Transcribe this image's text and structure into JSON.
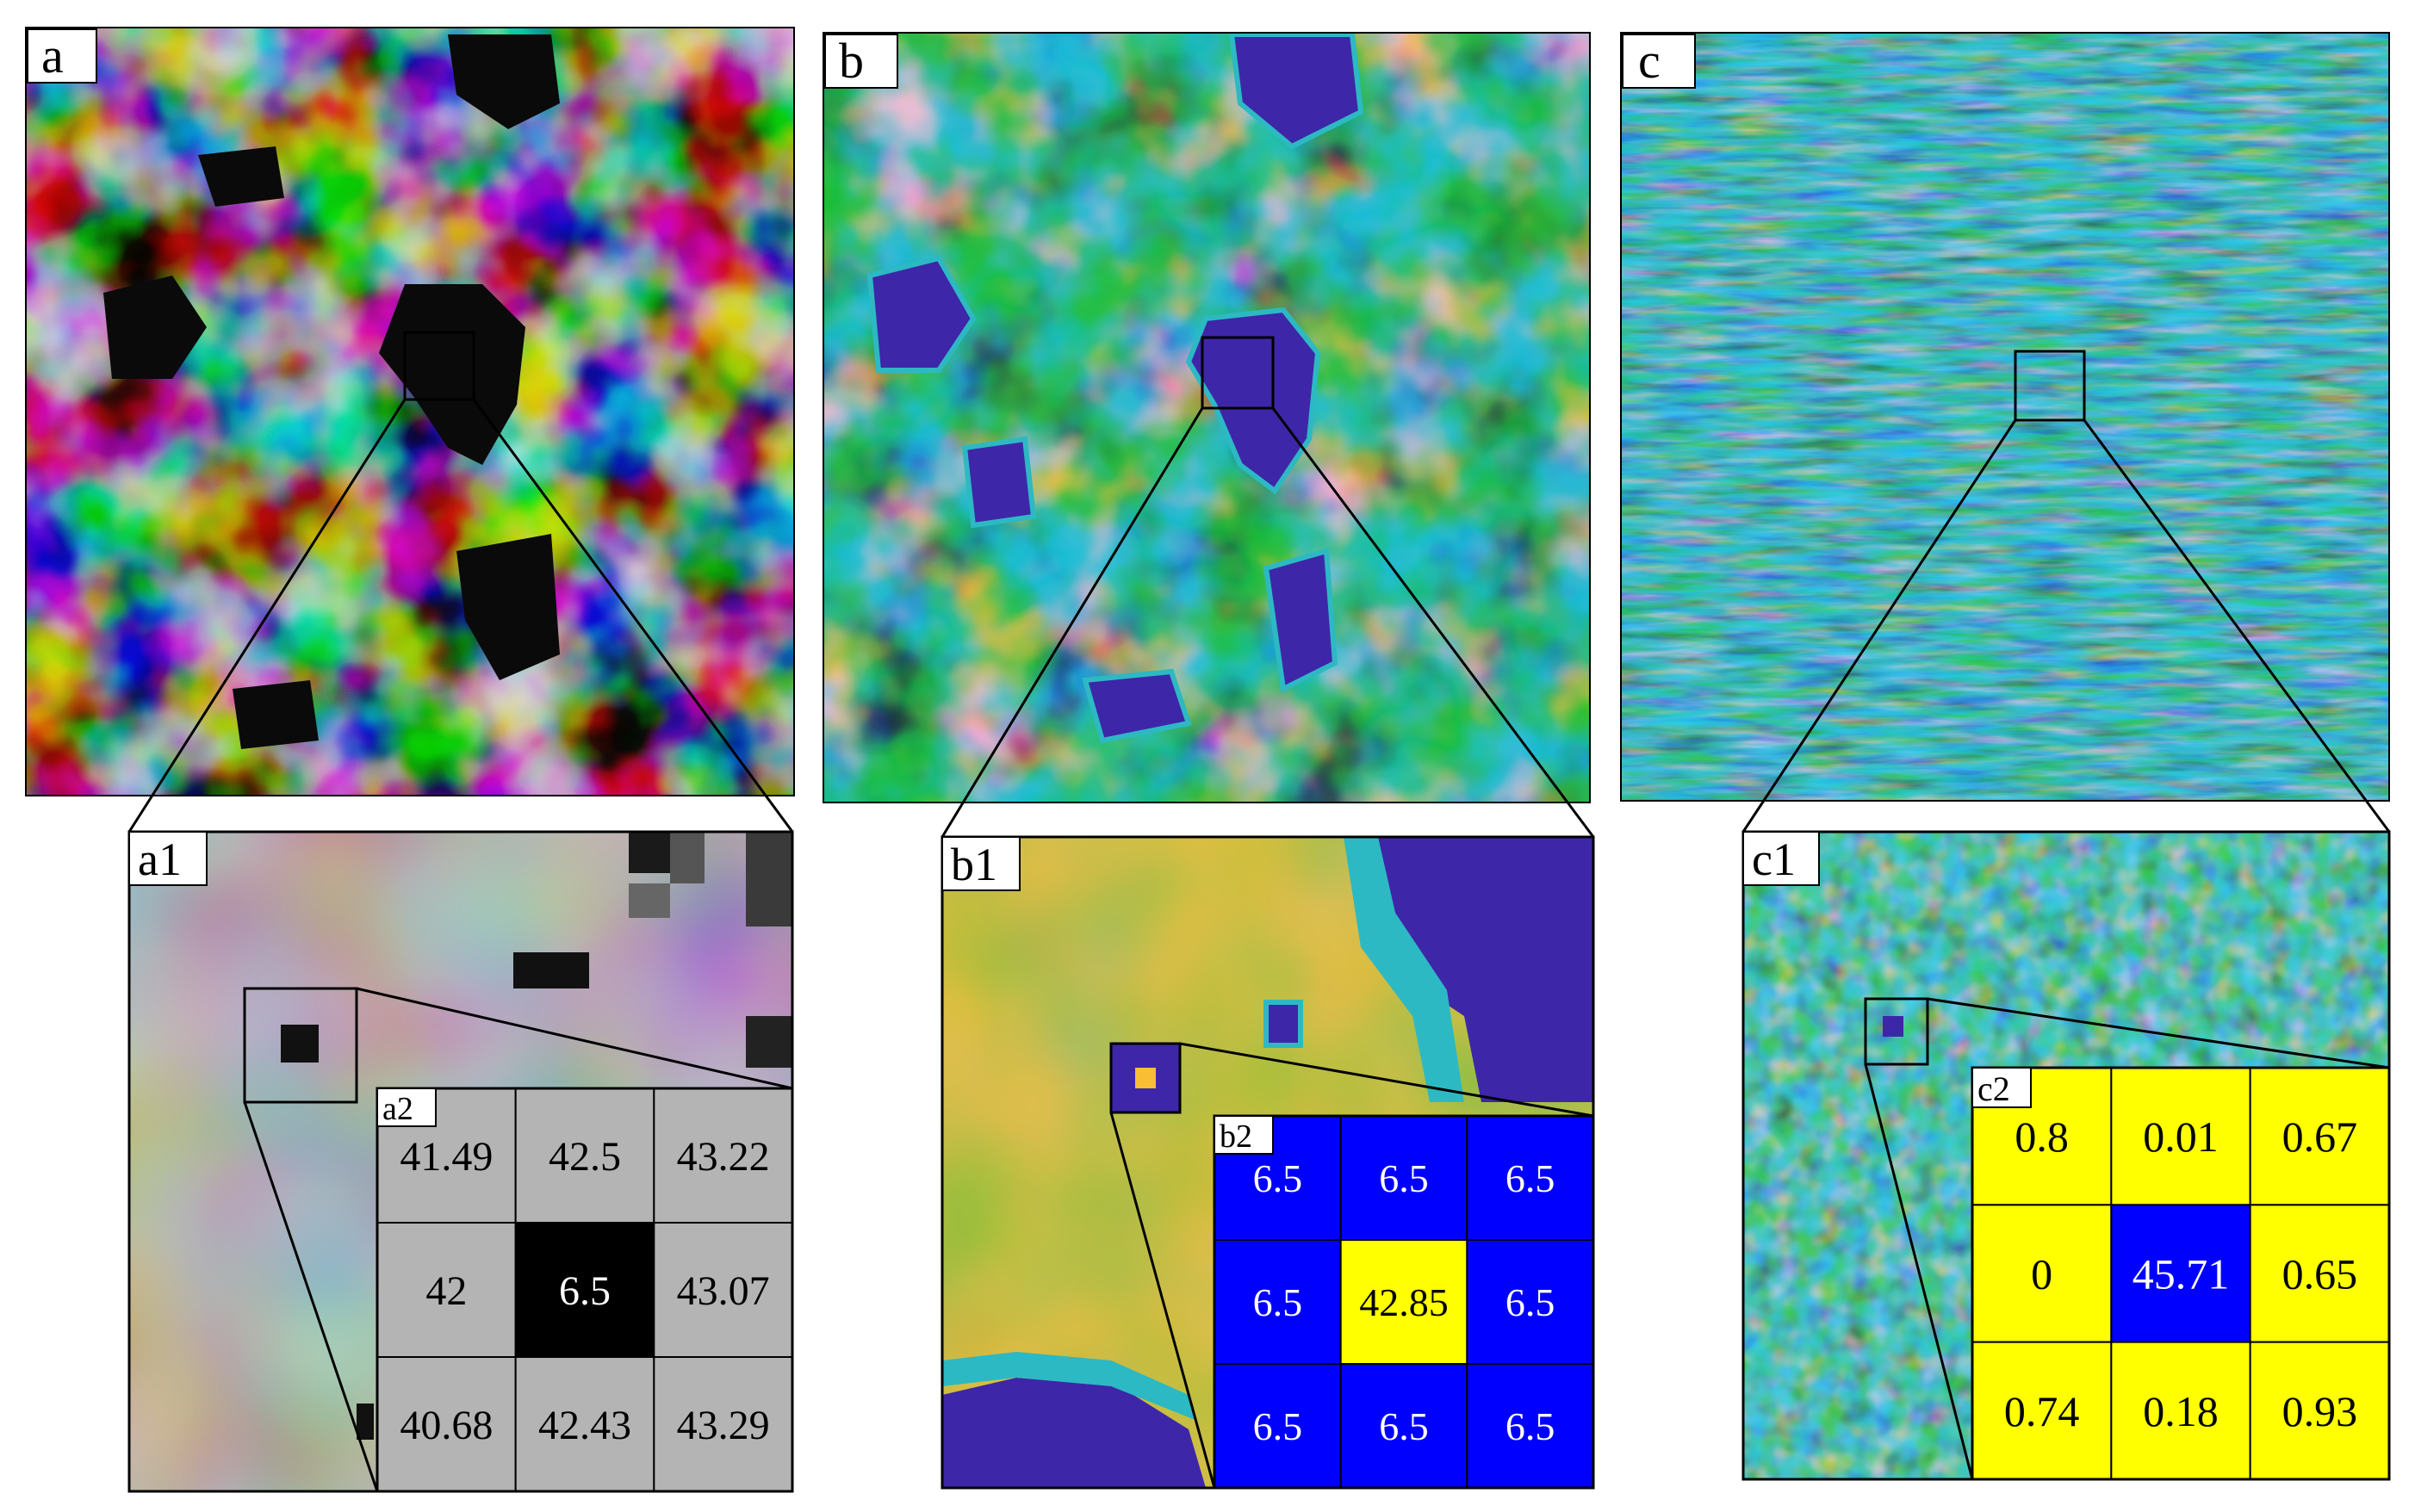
{
  "panels": {
    "a": "a",
    "a1": "a1",
    "a2": "a2",
    "b": "b",
    "b1": "b1",
    "b2": "b2",
    "c": "c",
    "c1": "c1",
    "c2": "c2"
  },
  "grids": {
    "a2": {
      "values": [
        "41.49",
        "42.5",
        "43.22",
        "42",
        "6.5",
        "43.07",
        "40.68",
        "42.43",
        "43.29"
      ],
      "colors": [
        "#b4b4b4",
        "#b4b4b4",
        "#b4b4b4",
        "#b4b4b4",
        "#000000",
        "#b4b4b4",
        "#b4b4b4",
        "#b4b4b4",
        "#b4b4b4"
      ],
      "text_colors": [
        "#000000",
        "#000000",
        "#000000",
        "#000000",
        "#ffffff",
        "#000000",
        "#000000",
        "#000000",
        "#000000"
      ]
    },
    "b2": {
      "values": [
        "6.5",
        "6.5",
        "6.5",
        "6.5",
        "42.85",
        "6.5",
        "6.5",
        "6.5",
        "6.5"
      ],
      "colors": [
        "#0000ff",
        "#0000ff",
        "#0000ff",
        "#0000ff",
        "#ffff00",
        "#0000ff",
        "#0000ff",
        "#0000ff",
        "#0000ff"
      ],
      "text_colors": [
        "#ffffff",
        "#ffffff",
        "#ffffff",
        "#ffffff",
        "#000000",
        "#ffffff",
        "#ffffff",
        "#ffffff",
        "#ffffff"
      ]
    },
    "c2": {
      "values": [
        "0.8",
        "0.01",
        "0.67",
        "0",
        "45.71",
        "0.65",
        "0.74",
        "0.18",
        "0.93"
      ],
      "colors": [
        "#ffff00",
        "#ffff00",
        "#ffff00",
        "#ffff00",
        "#0000ff",
        "#ffff00",
        "#ffff00",
        "#ffff00",
        "#ffff00"
      ],
      "text_colors": [
        "#000000",
        "#000000",
        "#000000",
        "#000000",
        "#ffffff",
        "#000000",
        "#000000",
        "#000000",
        "#000000"
      ]
    }
  },
  "colors": {
    "gray_dark": "#0a0a0a",
    "gray_light": "#d2d2d2",
    "parula_low": "#3e26a8",
    "parula_mid": "#2db9c3",
    "parula_high": "#f9be33",
    "outline": "#000000"
  }
}
